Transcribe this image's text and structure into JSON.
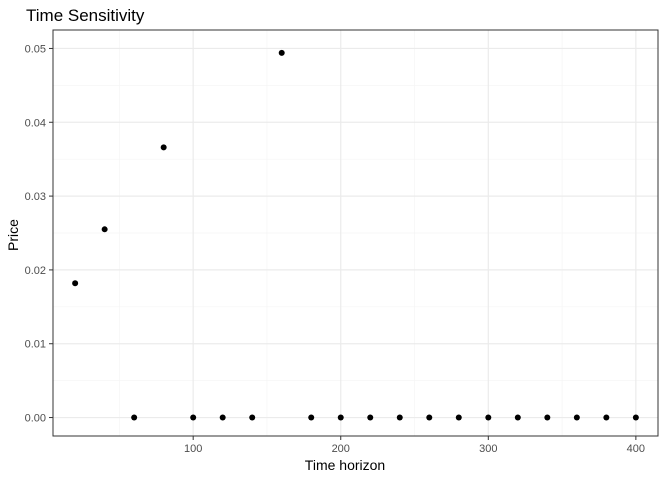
{
  "chart_data": {
    "type": "scatter",
    "title": "Time Sensitivity",
    "xlabel": "Time horizon",
    "ylabel": "Price",
    "xlim": [
      5,
      415
    ],
    "ylim": [
      -0.0025,
      0.0525
    ],
    "x_ticks": [
      100,
      200,
      300,
      400
    ],
    "x_tick_labels": [
      "100",
      "200",
      "300",
      "400"
    ],
    "y_ticks": [
      0,
      0.01,
      0.02,
      0.03,
      0.04,
      0.05
    ],
    "y_tick_labels": [
      "0.00",
      "0.01",
      "0.02",
      "0.03",
      "0.04",
      "0.05"
    ],
    "grid": true,
    "x": [
      20,
      40,
      60,
      80,
      100,
      120,
      140,
      160,
      180,
      200,
      220,
      240,
      260,
      280,
      300,
      320,
      340,
      360,
      380,
      400
    ],
    "y": [
      0.0182,
      0.0255,
      0,
      0.0366,
      0,
      0,
      0,
      0.0494,
      0,
      0,
      0,
      0,
      0,
      0,
      0,
      0,
      0,
      0,
      0,
      0
    ],
    "colors": {
      "point": "#000000",
      "panel_border": "#333333",
      "grid_major": "#ebebeb",
      "grid_minor": "#f5f5f5"
    }
  }
}
